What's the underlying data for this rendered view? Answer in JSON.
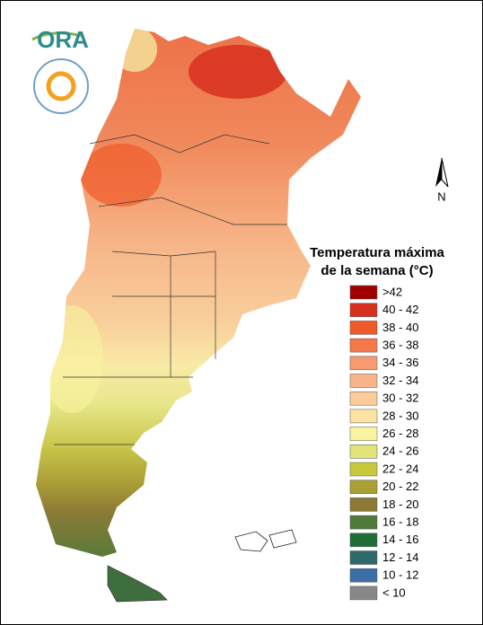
{
  "logo": {
    "text": "ORA"
  },
  "compass": {
    "label": "N"
  },
  "legend": {
    "title": [
      "Temperatura máxima",
      "de la semana (°C)"
    ],
    "items": [
      {
        "label": ">42",
        "color": "#a00000"
      },
      {
        "label": "40 - 42",
        "color": "#d7301f"
      },
      {
        "label": "38 - 40",
        "color": "#ef5a2a"
      },
      {
        "label": "36 - 38",
        "color": "#f4784a"
      },
      {
        "label": "34 - 36",
        "color": "#f79a6e"
      },
      {
        "label": "32 - 34",
        "color": "#f9b48a"
      },
      {
        "label": "30 - 32",
        "color": "#fbcb9c"
      },
      {
        "label": "28 - 30",
        "color": "#fde3a4"
      },
      {
        "label": "26 - 28",
        "color": "#f8f4a0"
      },
      {
        "label": "24 - 26",
        "color": "#e2e47a"
      },
      {
        "label": "22 - 24",
        "color": "#c8c83e"
      },
      {
        "label": "20 - 22",
        "color": "#aa9f32"
      },
      {
        "label": "18 - 20",
        "color": "#8c7a36"
      },
      {
        "label": "16 - 18",
        "color": "#4e7a3a"
      },
      {
        "label": "14 - 16",
        "color": "#1f6e3a"
      },
      {
        "label": "12 - 14",
        "color": "#2e6a6a"
      },
      {
        "label": "10 - 12",
        "color": "#3a6ea5"
      },
      {
        "label": "< 10",
        "color": "#888888"
      }
    ]
  }
}
